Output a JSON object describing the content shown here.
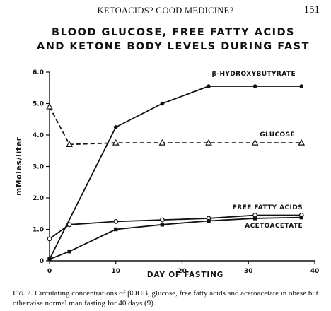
{
  "header": {
    "running_head": "KETOACIDS? GOOD MEDICINE?",
    "page_number": "151"
  },
  "chart_data": {
    "type": "line",
    "title_lines": [
      "BLOOD GLUCOSE, FREE FATTY ACIDS",
      "AND KETONE BODY LEVELS DURING FAST"
    ],
    "xlabel": "DAY OF FASTING",
    "ylabel": "mMoles/liter",
    "xlim": [
      0,
      40
    ],
    "ylim": [
      0,
      6.0
    ],
    "x_ticks": [
      0,
      10,
      20,
      30,
      40
    ],
    "y_ticks": [
      0,
      1.0,
      2.0,
      3.0,
      4.0,
      5.0,
      6.0
    ],
    "y_tick_labels": [
      "0",
      "1.0",
      "2.0",
      "3.0",
      "4.0",
      "5.0",
      "6.0"
    ],
    "grid": false,
    "series": [
      {
        "name": "β-HYDROXYBUTYRATE",
        "marker": "filled-circle",
        "dashed": false,
        "x": [
          0,
          10,
          17,
          24,
          31,
          38
        ],
        "y": [
          0.05,
          4.25,
          5.0,
          5.55,
          5.55,
          5.55
        ]
      },
      {
        "name": "GLUCOSE",
        "marker": "open-triangle",
        "dashed": true,
        "x": [
          0,
          3,
          10,
          17,
          24,
          31,
          38
        ],
        "y": [
          4.9,
          3.7,
          3.75,
          3.75,
          3.75,
          3.75,
          3.75
        ]
      },
      {
        "name": "FREE FATTY ACIDS",
        "marker": "open-circle",
        "dashed": false,
        "x": [
          0,
          3,
          10,
          17,
          24,
          31,
          38
        ],
        "y": [
          0.7,
          1.15,
          1.25,
          1.3,
          1.35,
          1.45,
          1.45
        ]
      },
      {
        "name": "ACETOACETATE",
        "marker": "filled-square",
        "dashed": false,
        "x": [
          0,
          3,
          10,
          17,
          24,
          31,
          38
        ],
        "y": [
          0.05,
          0.3,
          1.0,
          1.15,
          1.27,
          1.35,
          1.38
        ]
      }
    ]
  },
  "caption": {
    "label": "Fig. 2.",
    "text": " Circulating concentrations of βOHB, glucose, free fatty acids and acetoacetate in obese but otherwise normal man fasting for 40 days (9)."
  }
}
